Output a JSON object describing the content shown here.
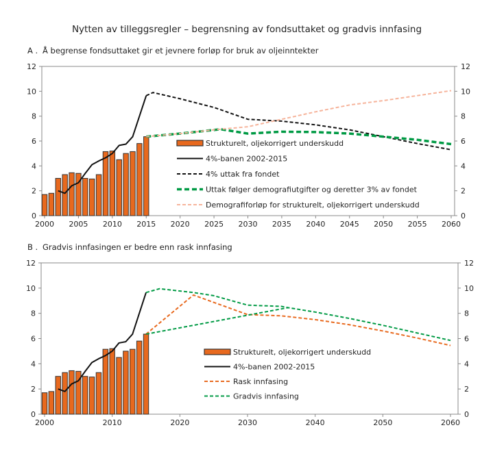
{
  "title": "Nytten av tilleggsregler – begrensning av fondsuttaket og gradvis innfasing",
  "colors": {
    "bar": "#E8691E",
    "bar_edge": "#333333",
    "black": "#111111",
    "green": "#009A44",
    "pink": "#F6B39A",
    "orange": "#E8691E",
    "axis": "#888888"
  },
  "chart_data": [
    {
      "type": "bar+line",
      "panel_label": "A .",
      "title": "Å begrense fondsuttaket gir et jevnere forløp for bruk av oljeinntekter",
      "xlim": [
        2000,
        2060
      ],
      "ylim": [
        0,
        12
      ],
      "yticks": [
        0,
        2,
        4,
        6,
        8,
        10,
        12
      ],
      "xticks": [
        2000,
        2005,
        2010,
        2015,
        2020,
        2025,
        2030,
        2035,
        2040,
        2045,
        2050,
        2055,
        2060
      ],
      "grid": false,
      "legend_position": "center",
      "bars": {
        "name": "Strukturelt, oljekorrigert underskudd",
        "x": [
          2000,
          2001,
          2002,
          2003,
          2004,
          2005,
          2006,
          2007,
          2008,
          2009,
          2010,
          2011,
          2012,
          2013,
          2014,
          2015
        ],
        "values": [
          1.7,
          1.8,
          3.0,
          3.3,
          3.45,
          3.4,
          3.0,
          2.95,
          3.3,
          5.15,
          5.2,
          4.5,
          5.0,
          5.15,
          5.8,
          6.35
        ]
      },
      "series": [
        {
          "name": "4%-banen 2002-2015",
          "style": "solid",
          "color": "black",
          "points": [
            [
              2002,
              2.0
            ],
            [
              2003,
              1.8
            ],
            [
              2004,
              2.4
            ],
            [
              2005,
              2.65
            ],
            [
              2006,
              3.4
            ],
            [
              2007,
              4.1
            ],
            [
              2008,
              4.4
            ],
            [
              2009,
              4.65
            ],
            [
              2010,
              5.0
            ],
            [
              2011,
              5.65
            ],
            [
              2012,
              5.75
            ],
            [
              2013,
              6.35
            ],
            [
              2014,
              8.0
            ],
            [
              2015,
              9.65
            ]
          ]
        },
        {
          "name": "4% uttak fra fondet",
          "style": "dash",
          "color": "black",
          "points": [
            [
              2015,
              9.65
            ],
            [
              2016,
              9.9
            ],
            [
              2020,
              9.4
            ],
            [
              2025,
              8.7
            ],
            [
              2030,
              7.75
            ],
            [
              2035,
              7.6
            ],
            [
              2040,
              7.3
            ],
            [
              2045,
              6.9
            ],
            [
              2050,
              6.35
            ],
            [
              2055,
              5.8
            ],
            [
              2060,
              5.3
            ]
          ]
        },
        {
          "name": "Uttak følger demografiutgifter og deretter 3% av fondet",
          "style": "thickdash",
          "color": "green",
          "points": [
            [
              2015,
              6.35
            ],
            [
              2020,
              6.6
            ],
            [
              2026,
              6.95
            ],
            [
              2030,
              6.6
            ],
            [
              2035,
              6.75
            ],
            [
              2040,
              6.72
            ],
            [
              2045,
              6.6
            ],
            [
              2050,
              6.35
            ],
            [
              2055,
              6.1
            ],
            [
              2060,
              5.75
            ]
          ]
        },
        {
          "name": "Demografiforløp for strukturelt, oljekorrigert underskudd",
          "style": "dash",
          "color": "pink",
          "points": [
            [
              2015,
              6.35
            ],
            [
              2020,
              6.6
            ],
            [
              2025,
              6.9
            ],
            [
              2030,
              7.15
            ],
            [
              2035,
              7.75
            ],
            [
              2040,
              8.35
            ],
            [
              2045,
              8.9
            ],
            [
              2050,
              9.25
            ],
            [
              2055,
              9.65
            ],
            [
              2060,
              10.05
            ]
          ]
        }
      ]
    },
    {
      "type": "bar+line",
      "panel_label": "B .",
      "title": "Gradvis innfasingen er bedre enn rask innfasing",
      "xlim": [
        2000,
        2060
      ],
      "ylim": [
        0,
        12
      ],
      "yticks": [
        0,
        2,
        4,
        6,
        8,
        10,
        12
      ],
      "xticks": [
        2000,
        2010,
        2020,
        2030,
        2040,
        2050,
        2060
      ],
      "grid": false,
      "legend_position": "center",
      "bars": {
        "name": "Strukturelt, oljekorrigert underskudd",
        "x": [
          2000,
          2001,
          2002,
          2003,
          2004,
          2005,
          2006,
          2007,
          2008,
          2009,
          2010,
          2011,
          2012,
          2013,
          2014,
          2015
        ],
        "values": [
          1.7,
          1.8,
          3.0,
          3.3,
          3.45,
          3.4,
          3.0,
          2.95,
          3.3,
          5.15,
          5.2,
          4.5,
          5.0,
          5.15,
          5.8,
          6.35
        ]
      },
      "series": [
        {
          "name": "4%-banen 2002-2015",
          "style": "solid",
          "color": "black",
          "points": [
            [
              2002,
              2.0
            ],
            [
              2003,
              1.8
            ],
            [
              2004,
              2.4
            ],
            [
              2005,
              2.65
            ],
            [
              2006,
              3.4
            ],
            [
              2007,
              4.1
            ],
            [
              2008,
              4.4
            ],
            [
              2009,
              4.65
            ],
            [
              2010,
              5.0
            ],
            [
              2011,
              5.65
            ],
            [
              2012,
              5.75
            ],
            [
              2013,
              6.35
            ],
            [
              2014,
              8.0
            ],
            [
              2015,
              9.65
            ]
          ]
        },
        {
          "name": "Rask innfasing",
          "style": "dash",
          "color": "orange",
          "points": [
            [
              2015,
              6.35
            ],
            [
              2022,
              9.45
            ],
            [
              2030,
              7.9
            ],
            [
              2035,
              7.8
            ],
            [
              2040,
              7.5
            ],
            [
              2045,
              7.1
            ],
            [
              2050,
              6.6
            ],
            [
              2055,
              6.05
            ],
            [
              2060,
              5.45
            ]
          ]
        },
        {
          "name": "Gradvis innfasing",
          "style": "dash",
          "color": "green",
          "points": [
            [
              2015,
              9.65
            ],
            [
              2017,
              9.95
            ],
            [
              2022,
              9.65
            ],
            [
              2025,
              9.4
            ],
            [
              2030,
              8.65
            ],
            [
              2035,
              8.55
            ],
            [
              2036,
              8.45
            ],
            [
              2040,
              8.1
            ],
            [
              2045,
              7.6
            ],
            [
              2050,
              7.05
            ],
            [
              2055,
              6.45
            ],
            [
              2060,
              5.85
            ]
          ],
          "extra_points": [
            [
              2015,
              6.35
            ],
            [
              2020,
              6.85
            ],
            [
              2025,
              7.35
            ],
            [
              2030,
              7.85
            ],
            [
              2036,
              8.45
            ]
          ]
        }
      ]
    }
  ]
}
